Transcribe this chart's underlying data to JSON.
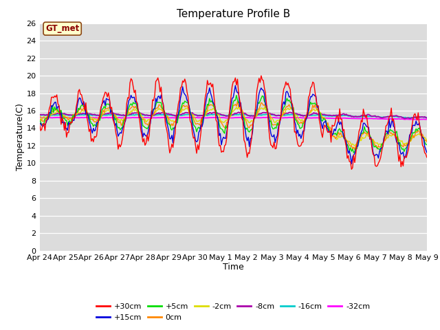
{
  "title": "Temperature Profile B",
  "xlabel": "Time",
  "ylabel": "Temperature(C)",
  "annotation": "GT_met",
  "ylim": [
    0,
    26
  ],
  "yticks": [
    0,
    2,
    4,
    6,
    8,
    10,
    12,
    14,
    16,
    18,
    20,
    22,
    24,
    26
  ],
  "xtick_labels": [
    "Apr 24",
    "Apr 25",
    "Apr 26",
    "Apr 27",
    "Apr 28",
    "Apr 29",
    "Apr 30",
    "May 1",
    "May 2",
    "May 3",
    "May 4",
    "May 5",
    "May 6",
    "May 7",
    "May 8",
    "May 9"
  ],
  "series_colors": {
    "+30cm": "#ff0000",
    "+15cm": "#0000dd",
    "+5cm": "#00dd00",
    "0cm": "#ff8800",
    "-2cm": "#dddd00",
    "-8cm": "#aa00aa",
    "-16cm": "#00cccc",
    "-32cm": "#ff00ff"
  },
  "background_color": "#dcdcdc",
  "title_fontsize": 11,
  "tick_fontsize": 8,
  "axis_label_fontsize": 9,
  "legend_fontsize": 8,
  "lw_shallow": 1.0,
  "lw_deep": 1.2
}
